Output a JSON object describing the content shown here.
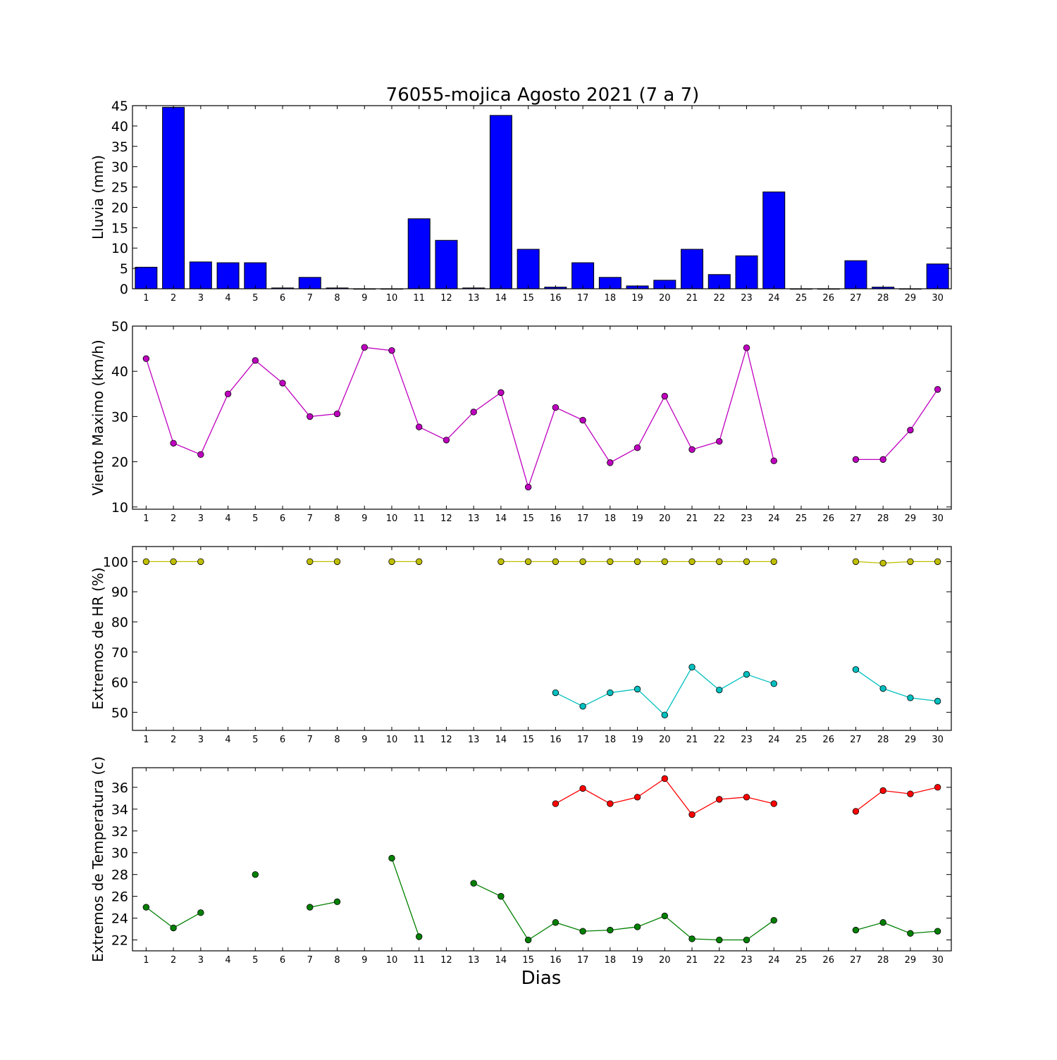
{
  "title": "76055-mojica Agosto 2021  (7 a 7)",
  "xlabel": "Dias",
  "days": [
    1,
    2,
    3,
    4,
    5,
    6,
    7,
    8,
    9,
    10,
    11,
    12,
    13,
    14,
    15,
    16,
    17,
    18,
    19,
    20,
    21,
    22,
    23,
    24,
    25,
    26,
    27,
    28,
    29,
    30
  ],
  "colors": {
    "rain": "#0000ff",
    "wind": "#bf00bf",
    "hr_max": "#bfbf00",
    "hr_min": "#00bfbf",
    "t_max": "#ff0000",
    "t_min": "#008000"
  },
  "chart_data": [
    {
      "type": "bar",
      "ylabel": "Lluvia (mm)",
      "ylim": [
        0,
        45
      ],
      "yticks": [
        0,
        5,
        10,
        15,
        20,
        25,
        30,
        35,
        40,
        45
      ],
      "x": [
        1,
        2,
        3,
        4,
        5,
        6,
        7,
        8,
        9,
        10,
        11,
        12,
        13,
        14,
        15,
        16,
        17,
        18,
        19,
        20,
        21,
        22,
        23,
        24,
        25,
        26,
        27,
        28,
        29,
        30
      ],
      "values": [
        5.3,
        44.6,
        6.6,
        6.4,
        6.4,
        0.2,
        2.8,
        0.2,
        0,
        0,
        17.2,
        11.9,
        0.2,
        42.6,
        9.7,
        0.4,
        6.4,
        2.8,
        0.7,
        2.1,
        9.7,
        3.5,
        8.1,
        23.8,
        0,
        0,
        6.9,
        0.4,
        0,
        6.1
      ]
    },
    {
      "type": "line",
      "ylabel": "Viento Maximo (km/h)",
      "ylim": [
        9.5,
        50
      ],
      "yticks": [
        10,
        20,
        30,
        40,
        50
      ],
      "x": [
        1,
        2,
        3,
        4,
        5,
        6,
        7,
        8,
        9,
        10,
        11,
        12,
        13,
        14,
        15,
        16,
        17,
        18,
        19,
        20,
        21,
        22,
        23,
        24,
        25,
        26,
        27,
        28,
        29,
        30
      ],
      "series": [
        {
          "values": [
            42.8,
            24.1,
            21.6,
            35.0,
            42.4,
            37.4,
            30.0,
            30.6,
            45.3,
            44.6,
            27.7,
            24.8,
            31.0,
            35.3,
            14.4,
            32.0,
            29.2,
            19.8,
            23.1,
            34.5,
            22.7,
            24.5,
            45.2,
            20.2,
            null,
            null,
            20.5,
            20.5,
            27.0,
            36.0
          ]
        }
      ]
    },
    {
      "type": "line",
      "ylabel": "Extremos de HR (%)",
      "ylim": [
        44,
        105
      ],
      "yticks": [
        50,
        60,
        70,
        80,
        90,
        100
      ],
      "x": [
        1,
        2,
        3,
        4,
        5,
        6,
        7,
        8,
        9,
        10,
        11,
        12,
        13,
        14,
        15,
        16,
        17,
        18,
        19,
        20,
        21,
        22,
        23,
        24,
        25,
        26,
        27,
        28,
        29,
        30
      ],
      "series": [
        {
          "values": [
            100,
            100,
            100,
            null,
            null,
            null,
            100,
            100,
            null,
            100,
            100,
            null,
            null,
            100,
            100,
            100,
            100,
            100,
            100,
            100,
            100,
            100,
            100,
            100,
            null,
            null,
            100,
            99.5,
            100,
            100
          ]
        },
        {
          "values": [
            null,
            null,
            null,
            null,
            null,
            null,
            null,
            null,
            null,
            null,
            null,
            null,
            null,
            null,
            null,
            56.5,
            52.0,
            56.5,
            57.7,
            49.1,
            65.0,
            57.4,
            62.6,
            59.5,
            null,
            null,
            64.2,
            57.9,
            54.8,
            53.7
          ]
        }
      ]
    },
    {
      "type": "line",
      "ylabel": "Extremos de Temperatura (c)",
      "ylim": [
        21,
        37.8
      ],
      "yticks": [
        22,
        24,
        26,
        28,
        30,
        32,
        34,
        36
      ],
      "x": [
        1,
        2,
        3,
        4,
        5,
        6,
        7,
        8,
        9,
        10,
        11,
        12,
        13,
        14,
        15,
        16,
        17,
        18,
        19,
        20,
        21,
        22,
        23,
        24,
        25,
        26,
        27,
        28,
        29,
        30
      ],
      "series": [
        {
          "values": [
            null,
            null,
            null,
            null,
            null,
            null,
            null,
            null,
            null,
            null,
            null,
            null,
            null,
            null,
            null,
            34.5,
            35.9,
            34.5,
            35.1,
            36.8,
            33.5,
            34.9,
            35.1,
            34.5,
            null,
            null,
            33.8,
            35.7,
            35.4,
            36.0
          ]
        },
        {
          "values": [
            25.0,
            23.1,
            24.5,
            null,
            28.0,
            null,
            25.0,
            25.5,
            null,
            29.5,
            22.3,
            null,
            27.2,
            26.0,
            22.0,
            23.6,
            22.8,
            22.9,
            23.2,
            24.2,
            22.1,
            22.0,
            22.0,
            23.8,
            null,
            null,
            22.9,
            23.6,
            22.6,
            22.8
          ]
        }
      ]
    }
  ]
}
